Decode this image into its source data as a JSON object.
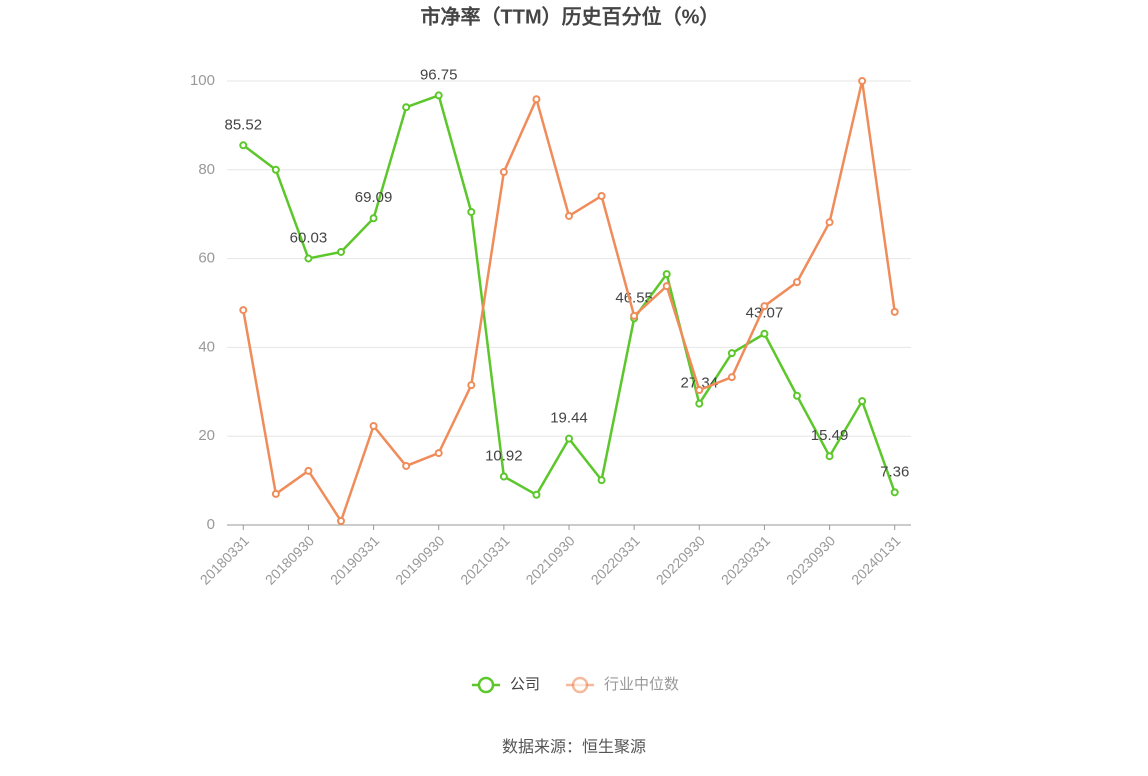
{
  "chart_data": {
    "type": "line",
    "title": "市净率（TTM）历史百分位（%）",
    "categories": [
      "20180331",
      null,
      "20180930",
      null,
      "20190331",
      null,
      "20190930",
      null,
      "20210331",
      null,
      "20210930",
      null,
      "20220331",
      null,
      "20220930",
      null,
      "20230331",
      null,
      "20230930",
      null,
      "20240131"
    ],
    "series": [
      {
        "name": "公司",
        "color": "#5cc72b",
        "values": [
          85.52,
          80.0,
          60.03,
          61.5,
          69.09,
          94.1,
          96.75,
          70.5,
          10.92,
          6.8,
          19.44,
          10.1,
          46.55,
          56.5,
          27.34,
          38.7,
          43.07,
          29.1,
          15.49,
          27.9,
          7.36
        ],
        "value_labels": [
          "85.52",
          null,
          "60.03",
          null,
          "69.09",
          null,
          "96.75",
          null,
          "10.92",
          null,
          "19.44",
          null,
          "46.55",
          null,
          "27.34",
          null,
          "43.07",
          null,
          "15.49",
          null,
          "7.36"
        ]
      },
      {
        "name": "行业中位数",
        "color": "#f08c5a",
        "values": [
          48.4,
          7.0,
          12.2,
          0.9,
          22.3,
          13.3,
          16.2,
          31.5,
          79.5,
          95.9,
          69.6,
          74.1,
          47.1,
          53.8,
          30.4,
          33.3,
          49.3,
          54.7,
          68.2,
          100.0,
          48.0
        ]
      }
    ],
    "ylim": [
      0,
      100
    ],
    "yticks": [
      0,
      20,
      40,
      60,
      80,
      100
    ],
    "grid": true,
    "source": "数据来源：恒生聚源"
  }
}
